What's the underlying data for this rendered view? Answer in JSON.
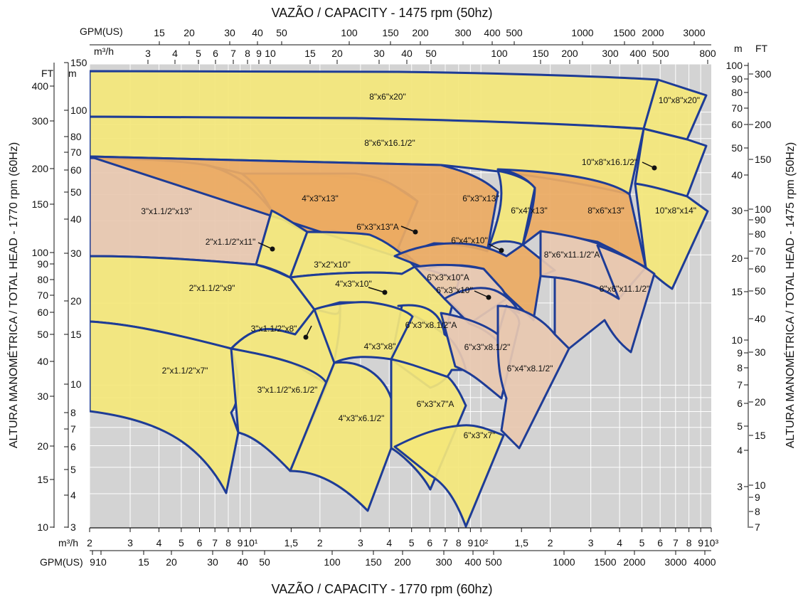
{
  "title_top": "VAZÃO / CAPACITY - 1475 rpm (50hz)",
  "title_bottom": "VAZÃO / CAPACITY - 1770 rpm (60hz)",
  "ylabel_left": "ALTURA MANOMÉTRICA / TOTAL HEAD - 1770 rpm (60Hz)",
  "ylabel_right": "ALTURA MANOMÉTRICA / TOTAL HEAD - 1475 rpm (50Hz)",
  "unit_labels": {
    "gpm_top": "GPM(US)",
    "m3h_top": "m³/h",
    "m3h_bottom": "m³/h",
    "gpm_bottom": "GPM(US)",
    "ft_left": "FT",
    "m_left": "m",
    "m_right": "m",
    "ft_right": "FT"
  },
  "chart_data": {
    "type": "area",
    "xscale": "log",
    "yscale": "log",
    "grid": true,
    "xlim_m3h_60hz": [
      2,
      1000
    ],
    "ylim_m_60hz": [
      3,
      150
    ],
    "colors": {
      "yellow": "#F4E77A",
      "pink": "#E8C8B0",
      "orange": "#EBAA62",
      "border": "#1E3C96",
      "background": "#D3D3D3"
    },
    "axes": {
      "top_gpm": [
        "15",
        "20",
        "30",
        "40",
        "50",
        "100",
        "150",
        "200",
        "300",
        "400",
        "500",
        "1000",
        "1500",
        "2000",
        "3000"
      ],
      "top_m3h": [
        "3",
        "4",
        "5",
        "6",
        "7",
        "8",
        "9",
        "10",
        "15",
        "20",
        "30",
        "40",
        "50",
        "100",
        "150",
        "200",
        "300",
        "400",
        "500",
        "800"
      ],
      "bottom_m3h": [
        "2",
        "3",
        "4",
        "5",
        "6",
        "7",
        "8",
        "9",
        "10¹",
        "1,5",
        "2",
        "3",
        "4",
        "5",
        "6",
        "7",
        "8",
        "9",
        "10²",
        "1,5",
        "2",
        "3",
        "4",
        "5",
        "6",
        "7",
        "8",
        "9",
        "10³"
      ],
      "bottom_gpm": [
        "9",
        "10",
        "15",
        "20",
        "30",
        "40",
        "50",
        "100",
        "150",
        "200",
        "300",
        "400",
        "500",
        "1000",
        "1500",
        "2000",
        "3000",
        "4000"
      ],
      "left_ft": [
        "400",
        "300",
        "200",
        "150",
        "100",
        "90",
        "80",
        "70",
        "60",
        "50",
        "40",
        "30",
        "20",
        "15",
        "10"
      ],
      "left_m": [
        "150",
        "100",
        "80",
        "70",
        "60",
        "50",
        "40",
        "30",
        "20",
        "15",
        "10",
        "8",
        "7",
        "6",
        "5",
        "4",
        "3"
      ],
      "right_m": [
        "100",
        "90",
        "80",
        "70",
        "60",
        "50",
        "40",
        "30",
        "20",
        "15",
        "10",
        "9",
        "8",
        "7",
        "6",
        "5",
        "4",
        "3"
      ],
      "right_ft": [
        "300",
        "200",
        "150",
        "100",
        "90",
        "80",
        "70",
        "60",
        "50",
        "40",
        "30",
        "20",
        "15",
        "10",
        "9",
        "8",
        "7"
      ]
    },
    "pump_models": [
      {
        "label": "8\"x6\"x20\"",
        "color": "yellow"
      },
      {
        "label": "10\"x8\"x20\"",
        "color": "yellow"
      },
      {
        "label": "8\"x6\"x16.1/2\"",
        "color": "yellow"
      },
      {
        "label": "10\"x8\"x16.1/2\"",
        "color": "yellow"
      },
      {
        "label": "10\"x8\"x14\"",
        "color": "yellow"
      },
      {
        "label": "3\"x1.1/2\"x13\"",
        "color": "pink"
      },
      {
        "label": "4\"x3\"x13\"",
        "color": "pink"
      },
      {
        "label": "6\"x3\"x13\"A",
        "color": "orange"
      },
      {
        "label": "6\"x3\"x13\"",
        "color": "orange"
      },
      {
        "label": "6\"x4\"x13\"",
        "color": "yellow"
      },
      {
        "label": "8\"x6\"x13\"",
        "color": "orange"
      },
      {
        "label": "2\"x1.1/2\"x11\"",
        "color": "yellow"
      },
      {
        "label": "3\"x2\"x10\"",
        "color": "yellow"
      },
      {
        "label": "6\"x4\"x10\"",
        "color": "orange"
      },
      {
        "label": "8\"x6\"x11.1/2\"A",
        "color": "pink"
      },
      {
        "label": "8\"x6\"x11.1/2\"",
        "color": "pink"
      },
      {
        "label": "2\"x1.1/2\"x9\"",
        "color": "yellow"
      },
      {
        "label": "4\"x3\"x10\"",
        "color": "yellow"
      },
      {
        "label": "6\"x3\"x10\"A",
        "color": "pink"
      },
      {
        "label": "6\"x3\"x10\"",
        "color": "pink"
      },
      {
        "label": "3\"x1.1/2\"x8\"",
        "color": "yellow"
      },
      {
        "label": "6\"x3\"x8.1/2\"A",
        "color": "yellow"
      },
      {
        "label": "4\"x3\"x8\"",
        "color": "yellow"
      },
      {
        "label": "6\"x3\"x8.1/2\"",
        "color": "pink"
      },
      {
        "label": "6\"x4\"x8.1/2\"",
        "color": "pink"
      },
      {
        "label": "2\"x1.1/2\"x7\"",
        "color": "yellow"
      },
      {
        "label": "3\"x1.1/2\"x6.1/2\"",
        "color": "yellow"
      },
      {
        "label": "6\"x3\"x7\"A",
        "color": "yellow"
      },
      {
        "label": "4\"x3\"x6.1/2\"",
        "color": "yellow"
      },
      {
        "label": "6\"x3\"x7\"",
        "color": "yellow"
      }
    ]
  }
}
